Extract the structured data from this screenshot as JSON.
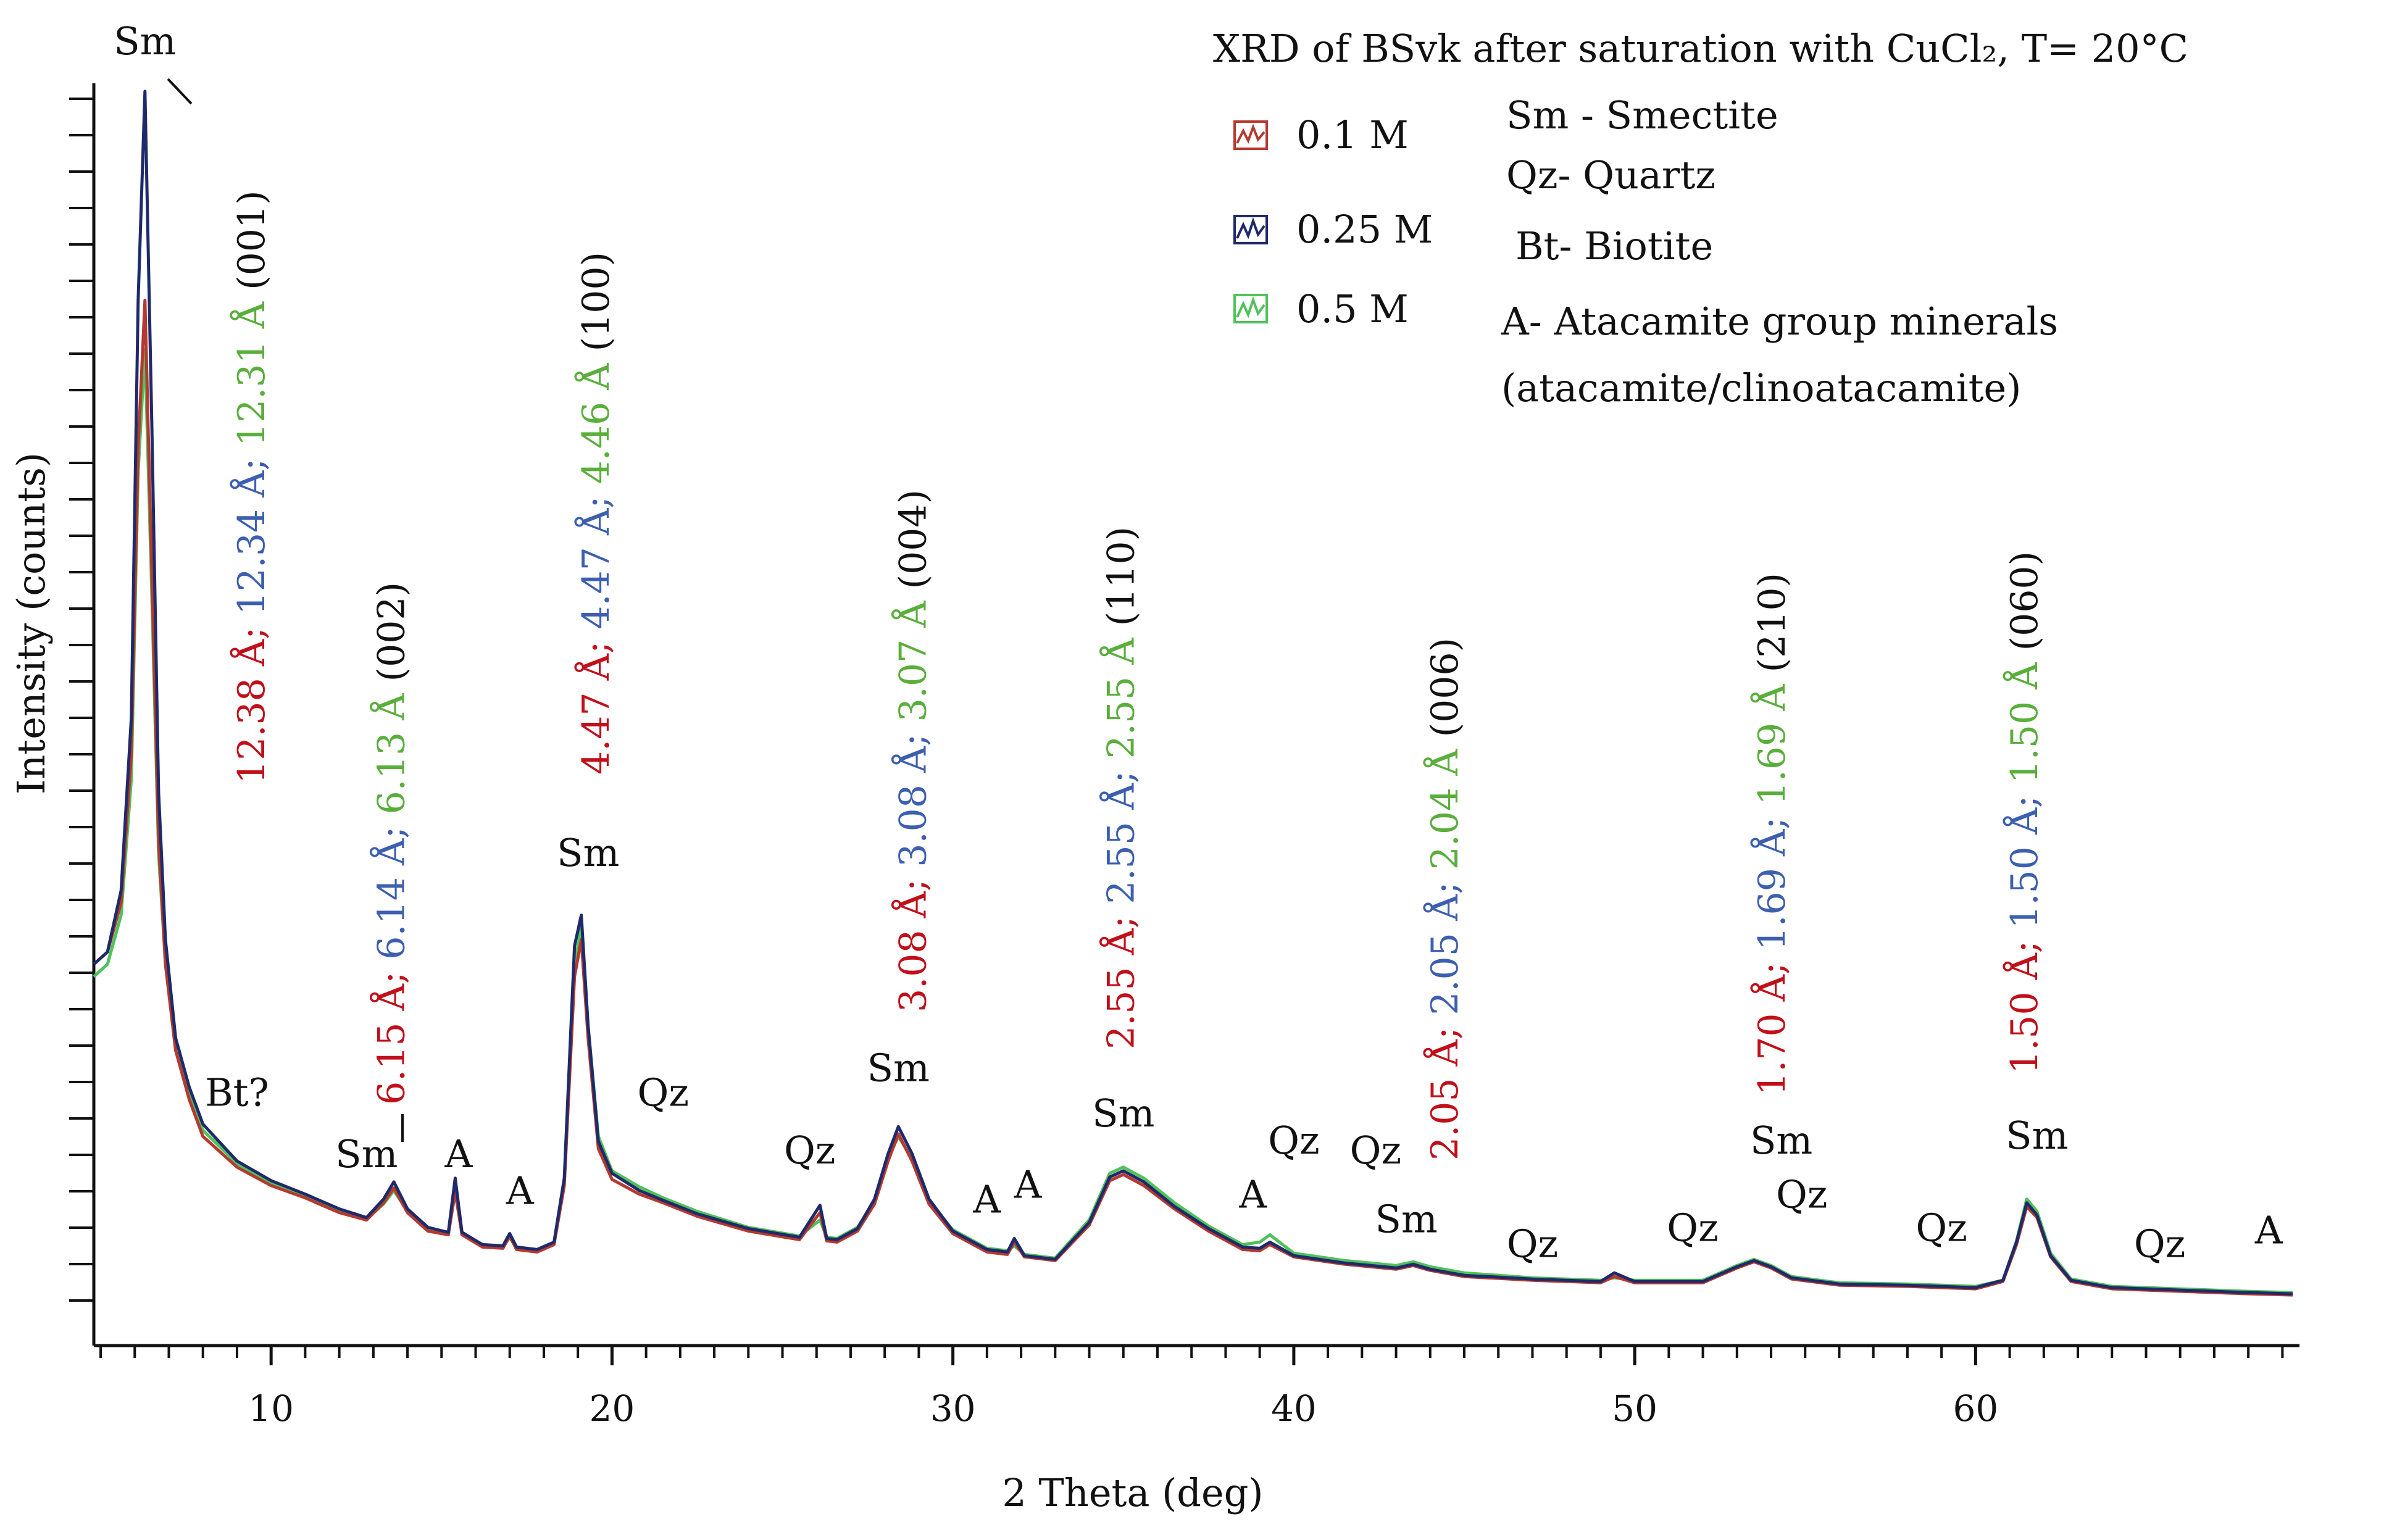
{
  "chart_data": {
    "type": "line",
    "title": "XRD of BSvk  after saturation with CuCl₂, T= 20°C",
    "xlabel": "2 Theta (deg)",
    "ylabel": "Intensity (counts)",
    "xlim": [
      4.8,
      69.5
    ],
    "ylim": [
      0,
      100
    ],
    "grid": false,
    "x_ticks": [
      10,
      20,
      30,
      40,
      50,
      60
    ],
    "x_tick_labels": [
      "10",
      "20",
      "30",
      "40",
      "50",
      "60"
    ],
    "legend": {
      "placement": "top-right",
      "entries": [
        {
          "label": "0.1 M",
          "color": "#b5392f"
        },
        {
          "label": "0.25 M",
          "color": "#1f2a6b"
        },
        {
          "label": "0.5 M",
          "color": "#4fc25a"
        }
      ]
    },
    "mineral_key": [
      "Sm - Smectite",
      "Qz-  Quartz",
      "Bt- Biotite",
      "A- Atacamite group minerals",
      "(atacamite/clinoatacamite)"
    ],
    "series": [
      {
        "name": "0.1 M",
        "color": "#b5392f",
        "x": [
          4.8,
          5.2,
          5.6,
          5.9,
          6.1,
          6.3,
          6.5,
          6.7,
          6.9,
          7.2,
          7.6,
          8.0,
          9.0,
          10.0,
          11.0,
          12.0,
          12.8,
          13.3,
          13.6,
          14.0,
          14.6,
          15.2,
          15.4,
          15.6,
          16.2,
          16.8,
          17.0,
          17.2,
          17.8,
          18.3,
          18.6,
          18.9,
          19.1,
          19.3,
          19.6,
          20.0,
          20.8,
          21.5,
          22.5,
          24.0,
          25.5,
          26.1,
          26.3,
          26.6,
          27.2,
          27.7,
          28.1,
          28.4,
          28.8,
          29.3,
          30.0,
          31.0,
          31.6,
          31.8,
          32.1,
          33.0,
          34.0,
          34.6,
          35.0,
          35.6,
          36.5,
          37.5,
          38.5,
          39.0,
          39.3,
          40.0,
          41.5,
          43.0,
          43.5,
          44.0,
          45.0,
          47.0,
          49.0,
          49.4,
          50.0,
          52.0,
          53.0,
          53.5,
          54.0,
          54.6,
          56.0,
          58.0,
          60.0,
          60.8,
          61.2,
          61.5,
          61.8,
          62.2,
          62.8,
          64.0,
          66.0,
          68.0,
          69.3
        ],
        "y": [
          28,
          29,
          33,
          45,
          70,
          82,
          60,
          38,
          28,
          21,
          17,
          14,
          11.5,
          10,
          9,
          7.8,
          7.2,
          8.6,
          9.8,
          7.8,
          6.3,
          6.0,
          9.6,
          6.0,
          5.0,
          4.9,
          5.9,
          4.8,
          4.6,
          5.2,
          10,
          27,
          30,
          22,
          13,
          10.5,
          9.3,
          8.6,
          7.5,
          6.3,
          5.6,
          7.8,
          5.5,
          5.4,
          6.3,
          8.5,
          12,
          14.2,
          12,
          8.5,
          6.1,
          4.6,
          4.4,
          5.4,
          4.2,
          3.9,
          6.8,
          10.4,
          10.9,
          10.0,
          8.1,
          6.3,
          4.8,
          4.7,
          5.2,
          4.2,
          3.6,
          3.2,
          3.5,
          3.1,
          2.6,
          2.3,
          2.1,
          2.6,
          2.1,
          2.1,
          3.3,
          3.8,
          3.3,
          2.4,
          1.9,
          1.8,
          1.6,
          2.2,
          5.2,
          8.3,
          7.4,
          4.2,
          2.2,
          1.6,
          1.4,
          1.2,
          1.1
        ]
      },
      {
        "name": "0.25 M",
        "color": "#1f2a6b",
        "x": [
          4.8,
          5.2,
          5.6,
          5.9,
          6.1,
          6.3,
          6.5,
          6.7,
          6.9,
          7.2,
          7.6,
          8.0,
          9.0,
          10.0,
          11.0,
          12.0,
          12.8,
          13.3,
          13.6,
          14.0,
          14.6,
          15.2,
          15.4,
          15.6,
          16.2,
          16.8,
          17.0,
          17.2,
          17.8,
          18.3,
          18.6,
          18.9,
          19.1,
          19.3,
          19.6,
          20.0,
          20.8,
          21.5,
          22.5,
          24.0,
          25.5,
          26.1,
          26.3,
          26.6,
          27.2,
          27.7,
          28.1,
          28.4,
          28.8,
          29.3,
          30.0,
          31.0,
          31.6,
          31.8,
          32.1,
          33.0,
          34.0,
          34.6,
          35.0,
          35.6,
          36.5,
          37.5,
          38.5,
          39.0,
          39.3,
          40.0,
          41.5,
          43.0,
          43.5,
          44.0,
          45.0,
          47.0,
          49.0,
          49.4,
          50.0,
          52.0,
          53.0,
          53.5,
          54.0,
          54.6,
          56.0,
          58.0,
          60.0,
          60.8,
          61.2,
          61.5,
          61.8,
          62.2,
          62.8,
          64.0,
          66.0,
          68.0,
          69.3
        ],
        "y": [
          28,
          29,
          34,
          48,
          82,
          99,
          72,
          42,
          30,
          22,
          18,
          15,
          12,
          10.4,
          9.3,
          8.1,
          7.4,
          8.9,
          10.3,
          8.1,
          6.6,
          6.2,
          10.6,
          6.2,
          5.2,
          5.1,
          6.1,
          5.0,
          4.8,
          5.4,
          10.6,
          29.5,
          32,
          23,
          13.6,
          11,
          9.6,
          8.8,
          7.7,
          6.5,
          5.8,
          8.4,
          5.7,
          5.6,
          6.5,
          8.9,
          12.6,
          14.8,
          12.6,
          8.9,
          6.3,
          4.8,
          4.6,
          5.7,
          4.3,
          4.0,
          7.0,
          10.7,
          11.2,
          10.3,
          8.3,
          6.5,
          5.0,
          4.9,
          5.4,
          4.3,
          3.7,
          3.3,
          3.6,
          3.2,
          2.7,
          2.4,
          2.2,
          2.9,
          2.2,
          2.2,
          3.4,
          3.9,
          3.4,
          2.5,
          2.0,
          1.9,
          1.7,
          2.3,
          5.4,
          8.6,
          7.6,
          4.3,
          2.3,
          1.7,
          1.5,
          1.3,
          1.2
        ]
      },
      {
        "name": "0.5 M",
        "color": "#4fc25a",
        "x": [
          4.8,
          5.2,
          5.6,
          5.9,
          6.1,
          6.3,
          6.5,
          6.7,
          6.9,
          7.2,
          7.6,
          8.0,
          9.0,
          10.0,
          11.0,
          12.0,
          12.8,
          13.3,
          13.6,
          14.0,
          14.6,
          15.2,
          15.4,
          15.6,
          16.2,
          16.8,
          17.0,
          17.2,
          17.8,
          18.3,
          18.6,
          18.9,
          19.1,
          19.3,
          19.6,
          20.0,
          20.8,
          21.5,
          22.5,
          24.0,
          25.5,
          26.1,
          26.3,
          26.6,
          27.2,
          27.7,
          28.1,
          28.4,
          28.8,
          29.3,
          30.0,
          31.0,
          31.6,
          31.8,
          32.1,
          33.0,
          34.0,
          34.6,
          35.0,
          35.6,
          36.5,
          37.5,
          38.5,
          39.0,
          39.3,
          40.0,
          41.5,
          43.0,
          43.5,
          44.0,
          45.0,
          47.0,
          49.0,
          49.4,
          50.0,
          52.0,
          53.0,
          53.5,
          54.0,
          54.6,
          56.0,
          58.0,
          60.0,
          60.8,
          61.2,
          61.5,
          61.8,
          62.2,
          62.8,
          64.0,
          66.0,
          68.0,
          69.3
        ],
        "y": [
          27,
          28,
          32,
          43,
          68,
          78,
          58,
          37,
          28,
          21,
          17.5,
          14.5,
          11.8,
          10.2,
          9.2,
          8.0,
          7.3,
          8.5,
          9.6,
          7.9,
          6.5,
          6.1,
          9.4,
          6.1,
          5.1,
          5.0,
          5.8,
          4.9,
          4.7,
          5.3,
          10.2,
          28,
          31,
          23,
          14,
          11.2,
          9.9,
          9.0,
          7.9,
          6.6,
          5.9,
          7.2,
          5.8,
          5.7,
          6.6,
          8.7,
          12.2,
          14.0,
          12.2,
          8.7,
          6.4,
          4.9,
          4.7,
          5.1,
          4.4,
          4.1,
          7.2,
          11.0,
          11.5,
          10.6,
          8.6,
          6.7,
          5.2,
          5.4,
          6.0,
          4.5,
          3.9,
          3.5,
          3.8,
          3.4,
          2.9,
          2.5,
          2.3,
          2.5,
          2.3,
          2.3,
          3.5,
          4.0,
          3.5,
          2.6,
          2.1,
          2.0,
          1.8,
          2.3,
          5.5,
          8.9,
          7.9,
          4.5,
          2.4,
          1.8,
          1.6,
          1.4,
          1.3
        ]
      }
    ],
    "annotations": {
      "peak_labels": [
        {
          "text": "Sm",
          "x": 6.3,
          "y": 102
        },
        {
          "text": "Bt?",
          "x": 9.0,
          "y": 16.5
        },
        {
          "text": "Sm",
          "x": 12.8,
          "y": 11.5
        },
        {
          "text": "A",
          "x": 15.5,
          "y": 11.5
        },
        {
          "text": "A",
          "x": 17.3,
          "y": 8.5
        },
        {
          "text": "Sm",
          "x": 19.3,
          "y": 36
        },
        {
          "text": "Qz",
          "x": 21.5,
          "y": 16.5
        },
        {
          "text": "Qz",
          "x": 25.8,
          "y": 11.8
        },
        {
          "text": "Sm",
          "x": 28.4,
          "y": 18.5
        },
        {
          "text": "A",
          "x": 31.0,
          "y": 7.8
        },
        {
          "text": "A",
          "x": 32.2,
          "y": 9.0
        },
        {
          "text": "Sm",
          "x": 35.0,
          "y": 14.8
        },
        {
          "text": "A",
          "x": 38.8,
          "y": 8.2
        },
        {
          "text": "Qz",
          "x": 40.0,
          "y": 12.6
        },
        {
          "text": "Qz",
          "x": 42.4,
          "y": 11.8
        },
        {
          "text": "Sm",
          "x": 43.3,
          "y": 6.2
        },
        {
          "text": "Qz",
          "x": 47.0,
          "y": 4.2
        },
        {
          "text": "Qz",
          "x": 51.7,
          "y": 5.5
        },
        {
          "text": "Sm",
          "x": 54.3,
          "y": 12.6
        },
        {
          "text": "Qz",
          "x": 54.9,
          "y": 8.2
        },
        {
          "text": "Qz",
          "x": 59.0,
          "y": 5.5
        },
        {
          "text": "Sm",
          "x": 61.8,
          "y": 13.0
        },
        {
          "text": "Qz",
          "x": 65.4,
          "y": 4.2
        },
        {
          "text": "A",
          "x": 68.6,
          "y": 5.3
        }
      ],
      "d_spacings": [
        {
          "x": 9.8,
          "parts": [
            "12.38 Å; ",
            "12.34 Å; ",
            "12.31 Å",
            " (001)"
          ]
        },
        {
          "x": 13.9,
          "parts": [
            "6.15 Å; ",
            "6.14 Å; ",
            "6.13 Å",
            " (002)"
          ]
        },
        {
          "x": 19.9,
          "parts": [
            "4.47 Å; ",
            "4.47 Å; ",
            "4.46 Å",
            " (100)"
          ]
        },
        {
          "x": 29.2,
          "parts": [
            "3.08 Å; ",
            "3.08 Å; ",
            "3.07 Å",
            " (004)"
          ]
        },
        {
          "x": 35.3,
          "parts": [
            "2.55 Å; ",
            "2.55 Å; ",
            "2.55 Å",
            " (110)"
          ]
        },
        {
          "x": 44.8,
          "parts": [
            "2.05 Å; ",
            "2.05 Å; ",
            "2.04 Å",
            " (006)"
          ]
        },
        {
          "x": 54.4,
          "parts": [
            "1.70 Å; ",
            "1.69 Å; ",
            "1.69 Å",
            " (210)"
          ]
        },
        {
          "x": 61.8,
          "parts": [
            "1.50 Å; ",
            "1.50 Å; ",
            "1.50 Å",
            " (060)"
          ]
        }
      ]
    }
  }
}
